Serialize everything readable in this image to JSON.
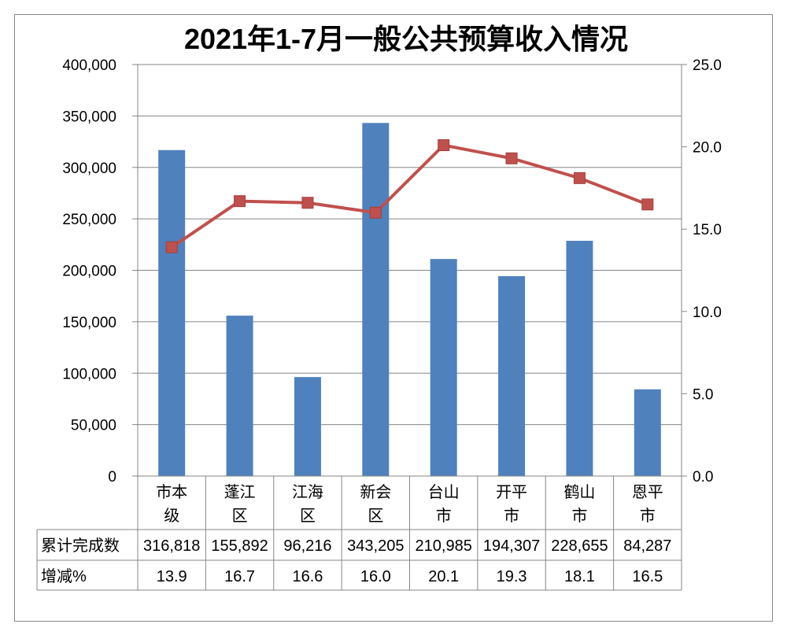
{
  "chart_data": {
    "type": "bar+line",
    "title": "2021年1-7月一般公共预算收入情况",
    "categories": [
      [
        "市本",
        "级"
      ],
      [
        "蓬江",
        "区"
      ],
      [
        "江海",
        "区"
      ],
      [
        "新会",
        "区"
      ],
      [
        "台山",
        "市"
      ],
      [
        "开平",
        "市"
      ],
      [
        "鹤山",
        "市"
      ],
      [
        "恩平",
        "市"
      ]
    ],
    "series": [
      {
        "name": "累计完成数",
        "type": "bar",
        "axis": "left",
        "color": "#4f81bd",
        "values": [
          316818,
          155892,
          96216,
          343205,
          210985,
          194307,
          228655,
          84287
        ],
        "labels": [
          "316,818",
          "155,892",
          "96,216",
          "343,205",
          "210,985",
          "194,307",
          "228,655",
          "84,287"
        ]
      },
      {
        "name": "增减%",
        "type": "line",
        "axis": "right",
        "color": "#c0504d",
        "values": [
          13.9,
          16.7,
          16.6,
          16.0,
          20.1,
          19.3,
          18.1,
          16.5
        ],
        "labels": [
          "13.9",
          "16.7",
          "16.6",
          "16.0",
          "20.1",
          "19.3",
          "18.1",
          "16.5"
        ]
      }
    ],
    "y_left": {
      "range": [
        0,
        400000
      ],
      "ticks": [
        "0",
        "50,000",
        "100,000",
        "150,000",
        "200,000",
        "250,000",
        "300,000",
        "350,000",
        "400,000"
      ]
    },
    "y_right": {
      "range": [
        0,
        25
      ],
      "ticks": [
        "0.0",
        "5.0",
        "10.0",
        "15.0",
        "20.0",
        "25.0"
      ]
    },
    "grid": true,
    "legend": "data-table"
  }
}
